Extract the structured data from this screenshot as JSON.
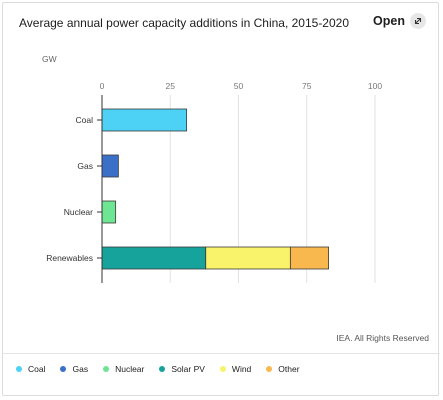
{
  "header": {
    "title": "Average annual power capacity additions in China, 2015-2020",
    "open_label": "Open"
  },
  "footer": {
    "credit": "IEA. All Rights Reserved"
  },
  "chart_data": {
    "type": "bar",
    "orientation": "horizontal",
    "stacked": true,
    "title": "Average annual power capacity additions in China, 2015-2020",
    "unit_label": "GW",
    "xlim": [
      0,
      100
    ],
    "xticks": [
      0,
      25,
      50,
      75,
      100
    ],
    "categories": [
      "Coal",
      "Gas",
      "Nuclear",
      "Renewables"
    ],
    "series": [
      {
        "name": "Coal",
        "color": "#4dd2f5",
        "values": [
          31,
          0,
          0,
          0
        ]
      },
      {
        "name": "Gas",
        "color": "#3a70c8",
        "values": [
          0,
          6,
          0,
          0
        ]
      },
      {
        "name": "Nuclear",
        "color": "#6ee592",
        "values": [
          0,
          0,
          5,
          0
        ]
      },
      {
        "name": "Solar PV",
        "color": "#16a39c",
        "values": [
          0,
          0,
          0,
          38
        ]
      },
      {
        "name": "Wind",
        "color": "#f8f36a",
        "values": [
          0,
          0,
          0,
          31
        ]
      },
      {
        "name": "Other",
        "color": "#f8b84e",
        "values": [
          0,
          0,
          0,
          14
        ]
      }
    ],
    "grid": true,
    "legend_position": "bottom"
  }
}
